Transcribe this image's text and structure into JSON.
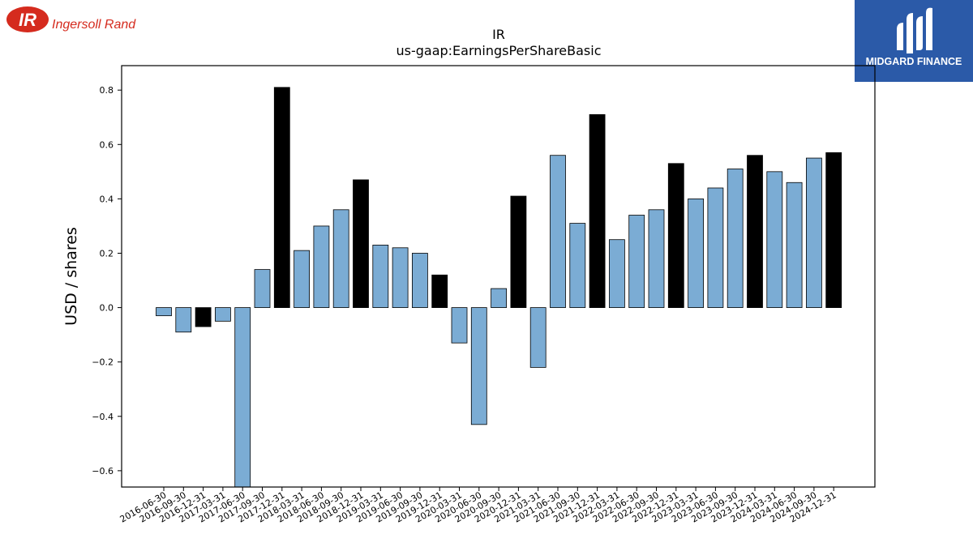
{
  "logos": {
    "left_text": "Ingersoll Rand",
    "left_mark": "IR",
    "right_text": "MIDGARD FINANCE",
    "colors": {
      "ir_red": "#d52b1e",
      "midgard_blue": "#2b5aa8"
    }
  },
  "chart_data": {
    "type": "bar",
    "title": "IR",
    "subtitle": "us-gaap:EarningsPerShareBasic",
    "xlabel": "",
    "ylabel": "USD / shares",
    "ylim": [
      -0.66,
      0.89
    ],
    "yticks": [
      -0.6,
      -0.4,
      -0.2,
      0.0,
      0.2,
      0.4,
      0.6,
      0.8
    ],
    "ytick_labels": [
      "−0.6",
      "−0.4",
      "−0.2",
      "0.0",
      "0.2",
      "0.4",
      "0.6",
      "0.8"
    ],
    "grid": false,
    "categories": [
      "2016-06-30",
      "2016-09-30",
      "2016-12-31",
      "2017-03-31",
      "2017-06-30",
      "2017-09-30",
      "2017-12-31",
      "2018-03-31",
      "2018-06-30",
      "2018-09-30",
      "2018-12-31",
      "2019-03-31",
      "2019-06-30",
      "2019-09-30",
      "2019-12-31",
      "2020-03-31",
      "2020-06-30",
      "2020-09-30",
      "2020-12-31",
      "2021-03-31",
      "2021-06-30",
      "2021-09-30",
      "2021-12-31",
      "2022-03-31",
      "2022-06-30",
      "2022-09-30",
      "2022-12-31",
      "2023-03-31",
      "2023-06-30",
      "2023-09-30",
      "2023-12-31",
      "2024-03-31",
      "2024-06-30",
      "2024-09-30",
      "2024-12-31"
    ],
    "values": [
      -0.03,
      -0.09,
      -0.07,
      -0.05,
      -0.66,
      0.14,
      0.81,
      0.21,
      0.3,
      0.36,
      0.47,
      0.23,
      0.22,
      0.2,
      0.12,
      -0.13,
      -0.43,
      0.07,
      0.41,
      -0.22,
      0.56,
      0.31,
      0.71,
      0.25,
      0.34,
      0.36,
      0.53,
      0.4,
      0.44,
      0.51,
      0.56,
      0.5,
      0.46,
      0.55,
      0.57
    ],
    "colors": {
      "quarter": "#7bacd4",
      "year_end": "#000000",
      "edge": "#000000"
    }
  }
}
